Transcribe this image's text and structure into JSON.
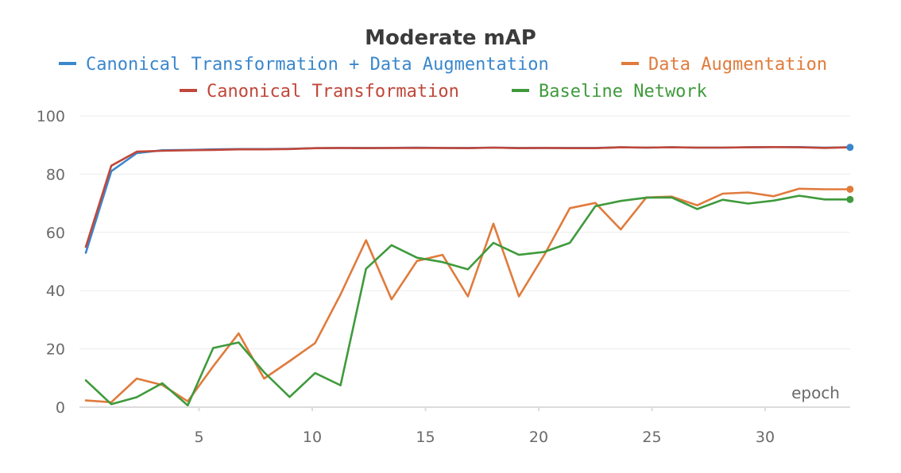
{
  "chart_data": {
    "type": "line",
    "title": "Moderate mAP",
    "xlabel": "epoch",
    "ylabel": "",
    "xlim": [
      0,
      34
    ],
    "ylim": [
      0,
      100
    ],
    "x_ticks": [
      5,
      10,
      15,
      20,
      25,
      30
    ],
    "y_ticks": [
      0,
      20,
      40,
      60,
      80,
      100
    ],
    "grid": true,
    "legend_position": "top",
    "x": [
      0,
      1.125,
      2.25,
      3.375,
      4.5,
      5.625,
      6.75,
      7.875,
      9,
      10.125,
      11.25,
      12.375,
      13.5,
      14.625,
      15.75,
      16.875,
      18,
      19.125,
      20.25,
      21.375,
      22.5,
      23.625,
      24.75,
      25.875,
      27,
      28.125,
      29.25,
      30.375,
      31.5,
      32.625,
      33.75
    ],
    "series": [
      {
        "name": "Canonical Transformation + Data Augmentation",
        "color": "#3a87cc",
        "values": [
          53,
          81,
          87.2,
          88.2,
          88.3,
          88.5,
          88.6,
          88.6,
          88.7,
          88.9,
          89,
          89,
          89,
          89.1,
          89,
          89,
          89.1,
          89,
          89,
          89,
          89,
          89.2,
          89.1,
          89.2,
          89.1,
          89.1,
          89.2,
          89.3,
          89.3,
          89.1,
          89.2
        ]
      },
      {
        "name": "Data Augmentation",
        "color": "#e07b3c",
        "values": [
          2.3,
          1.7,
          9.8,
          7.6,
          2,
          14,
          25.3,
          9.8,
          15.8,
          22,
          38.7,
          57.3,
          37,
          50.2,
          52.3,
          38,
          63,
          38,
          52.3,
          68.3,
          70.1,
          61,
          72,
          72.3,
          69.3,
          73.3,
          73.7,
          72.4,
          75,
          74.8,
          74.8
        ]
      },
      {
        "name": "Canonical Transformation",
        "color": "#c0473a",
        "values": [
          55,
          82.9,
          87.7,
          88,
          88.2,
          88.3,
          88.5,
          88.5,
          88.6,
          88.9,
          89,
          88.9,
          89,
          89,
          89,
          88.9,
          89.1,
          88.9,
          89,
          88.9,
          88.9,
          89.2,
          89.1,
          89.2,
          89.1,
          89.1,
          89.2,
          89.3,
          89.2,
          89,
          89.2
        ]
      },
      {
        "name": "Baseline Network",
        "color": "#3f9a3c",
        "values": [
          9.2,
          1,
          3.4,
          8.2,
          0.6,
          20.3,
          22.2,
          12,
          3.5,
          11.7,
          7.5,
          47.5,
          55.6,
          51.3,
          49.8,
          47.3,
          56.4,
          52.3,
          53.3,
          56.4,
          69,
          70.8,
          71.9,
          72,
          68,
          71.2,
          69.9,
          70.9,
          72.6,
          71.3,
          71.3
        ]
      }
    ]
  }
}
